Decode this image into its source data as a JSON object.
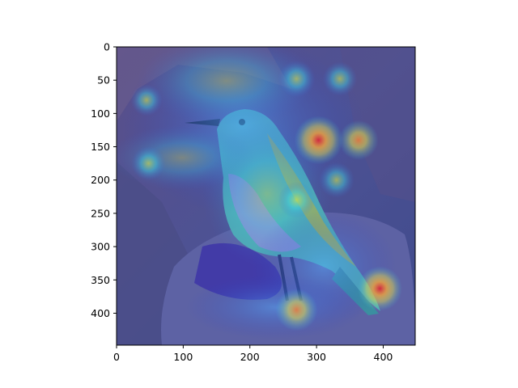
{
  "figure": {
    "background": "#ffffff",
    "axis_color": "#000000"
  },
  "image": {
    "x_range": [
      0,
      448
    ],
    "y_range": [
      0,
      448
    ],
    "base_tint": "#4a4f8c",
    "scene": {
      "subject": "bird-icon",
      "rock_color": "#5e63a3",
      "bird_body_color": "#4fb0b0",
      "bird_belly_color": "#8a8fd0"
    },
    "heatmap_colormap": "jet",
    "hotspots": [
      {
        "x": 303,
        "y": 140,
        "intensity": 1.0
      },
      {
        "x": 363,
        "y": 140,
        "intensity": 0.65
      },
      {
        "x": 270,
        "y": 48,
        "intensity": 0.55
      },
      {
        "x": 335,
        "y": 48,
        "intensity": 0.45
      },
      {
        "x": 395,
        "y": 363,
        "intensity": 0.85
      },
      {
        "x": 270,
        "y": 395,
        "intensity": 0.75
      },
      {
        "x": 48,
        "y": 175,
        "intensity": 0.45
      },
      {
        "x": 45,
        "y": 80,
        "intensity": 0.35
      },
      {
        "x": 330,
        "y": 200,
        "intensity": 0.5
      },
      {
        "x": 270,
        "y": 230,
        "intensity": 0.55
      }
    ]
  },
  "axes": {
    "x_ticks": [
      "0",
      "100",
      "200",
      "300",
      "400"
    ],
    "x_tick_values": [
      0,
      100,
      200,
      300,
      400
    ],
    "y_ticks": [
      "0",
      "50",
      "100",
      "150",
      "200",
      "250",
      "300",
      "350",
      "400"
    ],
    "y_tick_values": [
      0,
      50,
      100,
      150,
      200,
      250,
      300,
      350,
      400
    ]
  }
}
